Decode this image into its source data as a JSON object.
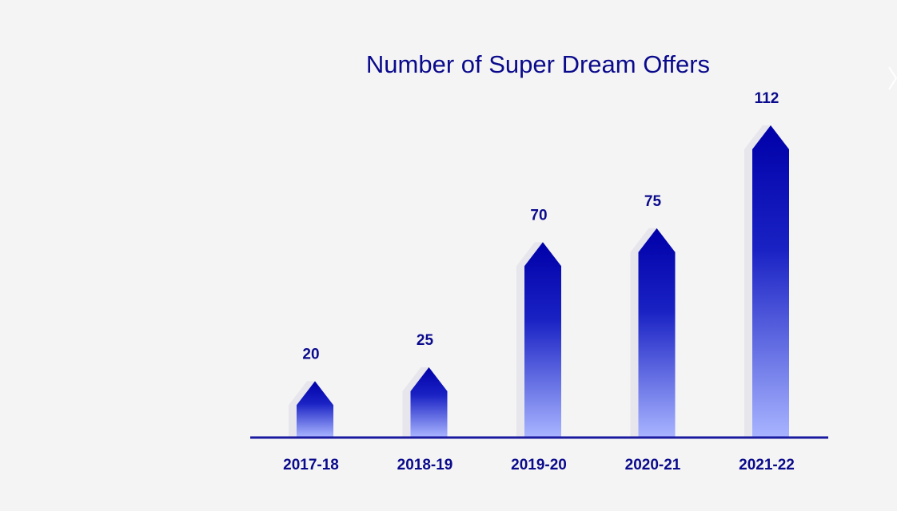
{
  "chart_data": {
    "type": "bar",
    "title": "Number of Super Dream Offers",
    "categories": [
      "2017-18",
      "2018-19",
      "2019-20",
      "2020-21",
      "2021-22"
    ],
    "values": [
      20,
      25,
      70,
      75,
      112
    ],
    "ylim": [
      0,
      112
    ],
    "grid": false,
    "legend": "none",
    "colors": {
      "bar_top": "#0000a8",
      "bar_bottom": "#a8b4ff",
      "axis": "#1a1aa0",
      "text": "#0a0a8c",
      "shadow": "#e6e6ec"
    }
  },
  "controls": {
    "next_icon": "chevron-right-icon"
  }
}
